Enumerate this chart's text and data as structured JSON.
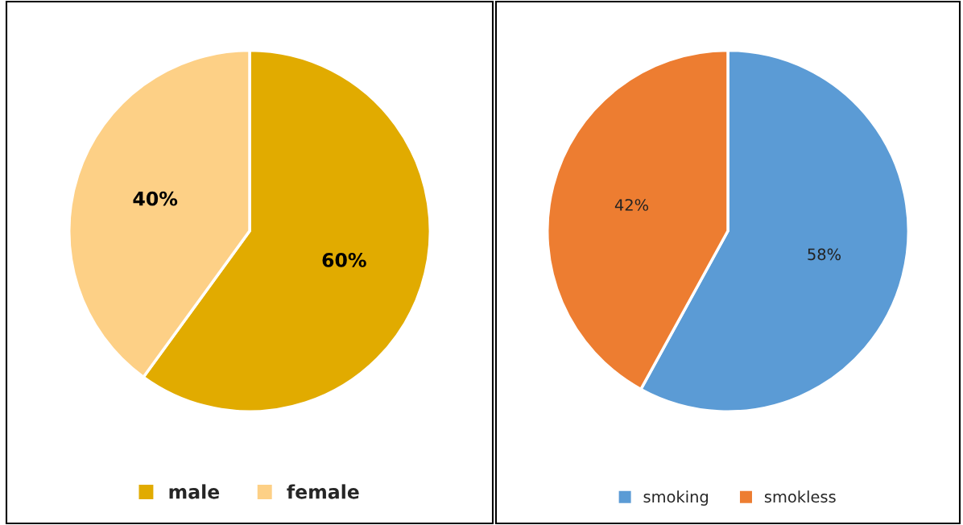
{
  "chart_data": [
    {
      "type": "pie",
      "categories": [
        "male",
        "female"
      ],
      "values": [
        60,
        40
      ],
      "colors": [
        "#e1ab00",
        "#fdd086"
      ],
      "value_labels": [
        "60%",
        "40%"
      ],
      "legend": "bottom"
    },
    {
      "type": "pie",
      "categories": [
        "smoking",
        "smokless"
      ],
      "values": [
        58,
        42
      ],
      "colors": [
        "#5b9bd5",
        "#ed7d31"
      ],
      "value_labels": [
        "58%",
        "42%"
      ],
      "legend": "bottom"
    }
  ]
}
